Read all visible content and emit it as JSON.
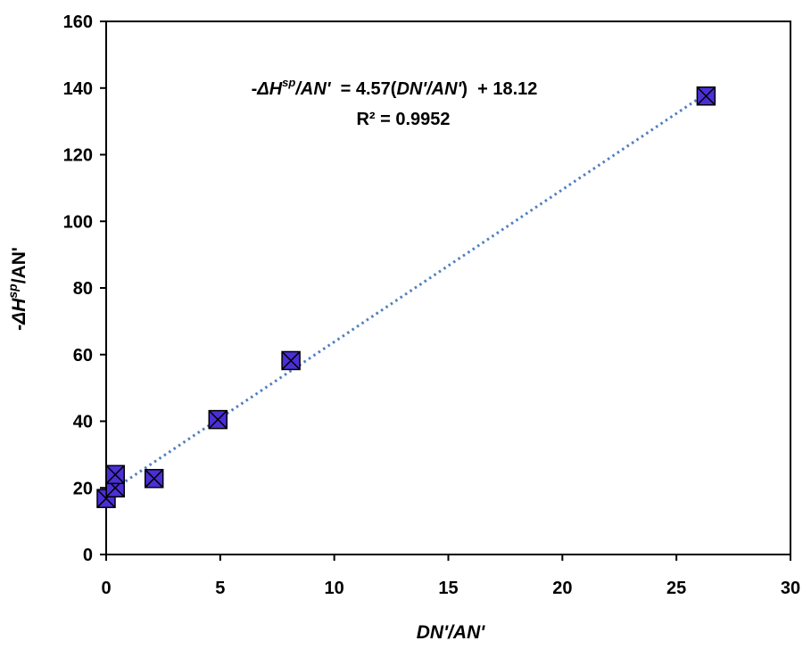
{
  "chart_data": {
    "type": "scatter",
    "xlim": [
      0,
      30
    ],
    "ylim": [
      0,
      160
    ],
    "x_ticks": [
      0,
      5,
      10,
      15,
      20,
      25,
      30
    ],
    "y_ticks": [
      0,
      20,
      40,
      60,
      80,
      100,
      120,
      140,
      160
    ],
    "x_tick_labels": [
      "0",
      "5",
      "10",
      "15",
      "20",
      "25",
      "30"
    ],
    "y_tick_labels": [
      "0",
      "20",
      "40",
      "60",
      "80",
      "100",
      "120",
      "140",
      "160"
    ],
    "xlabel": "DN'/AN'",
    "ylabel": {
      "prefix": "-",
      "delta": "Δ",
      "var": "H",
      "sup": "sp",
      "suffix": "/AN'"
    },
    "grid": false,
    "series": [
      {
        "marker": "square-x",
        "color": "#4B2FD6",
        "points": [
          {
            "x": 0.0,
            "y": 16.8
          },
          {
            "x": 0.4,
            "y": 20.0
          },
          {
            "x": 0.4,
            "y": 24.0
          },
          {
            "x": 2.1,
            "y": 22.8
          },
          {
            "x": 4.9,
            "y": 40.5
          },
          {
            "x": 8.1,
            "y": 58.2
          },
          {
            "x": 26.3,
            "y": 137.6
          }
        ]
      }
    ],
    "trendline": {
      "slope": 4.57,
      "intercept": 18.12,
      "x_range": [
        0,
        26.3
      ],
      "style": "dotted",
      "color": "#4F7FC0",
      "equation_parts": [
        "-",
        "ΔH",
        "sp",
        "/AN'",
        "  = 4.57(",
        "DN'/AN'",
        ")  + 18.12"
      ],
      "r2_label": "R² = 0.9952"
    }
  }
}
